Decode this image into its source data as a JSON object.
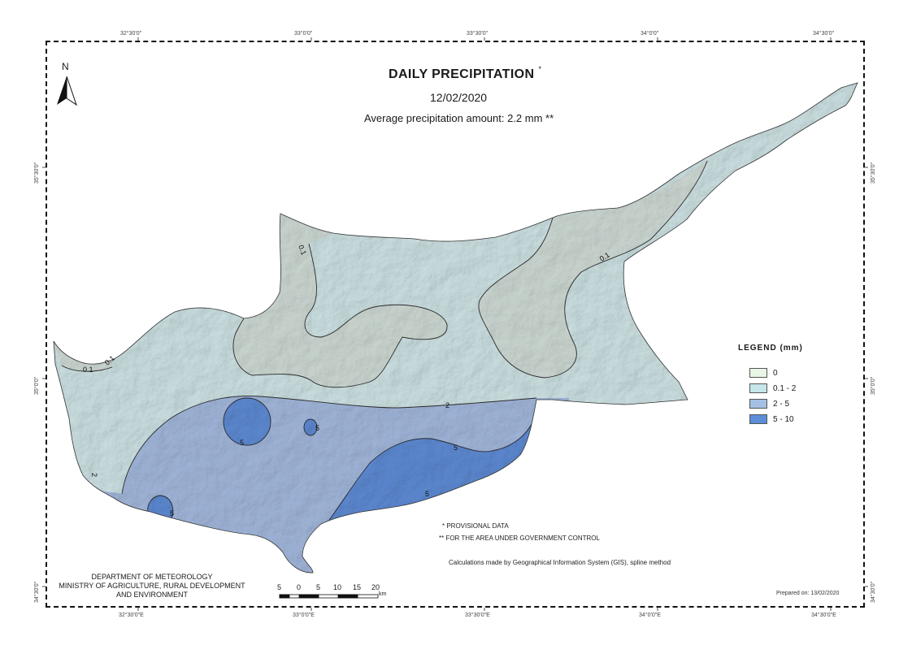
{
  "map": {
    "title": "DAILY PRECIPITATION",
    "title_mark": "*",
    "date": "12/02/2020",
    "average": "Average precipitation amount: 2.2 mm **",
    "north_label": "N"
  },
  "graticule": {
    "top": [
      "32°30'0\"",
      "33°0'0\"",
      "33°30'0\"",
      "34°0'0\"",
      "34°30'0\""
    ],
    "bottom": [
      "32°30'0\"E",
      "33°0'0\"E",
      "33°30'0\"E",
      "34°0'0\"E",
      "34°30'0\"E"
    ],
    "left": [
      "35°30'0\"",
      "35°0'0\"",
      "34°30'0\""
    ],
    "right": [
      "35°30'0\"",
      "35°0'0\"",
      "34°30'0\""
    ]
  },
  "legend": {
    "title": "LEGEND (mm)",
    "items": [
      {
        "label": "0",
        "color": "#eaf6e6"
      },
      {
        "label": "0.1 - 2",
        "color": "#c5e6ea"
      },
      {
        "label": "2 - 5",
        "color": "#a4bfe3"
      },
      {
        "label": "5 - 10",
        "color": "#5b8ed6"
      }
    ]
  },
  "contour_labels": [
    {
      "text": "0.1"
    },
    {
      "text": "0.1"
    },
    {
      "text": "0.1"
    },
    {
      "text": "0.1"
    },
    {
      "text": "2"
    },
    {
      "text": "2"
    },
    {
      "text": "5"
    },
    {
      "text": "5"
    },
    {
      "text": "5"
    },
    {
      "text": "5"
    },
    {
      "text": "5"
    }
  ],
  "notes": {
    "provisional": "* PROVISIONAL DATA",
    "government": "** FOR THE AREA UNDER GOVERNMENT CONTROL",
    "calculations": "Calculations made by Geographical Information System (GIS), spline method",
    "prepared": "Prepared on: 13/02/2020"
  },
  "department": {
    "line1": "DEPARTMENT OF METEOROLOGY",
    "line2": "MINISTRY OF AGRICULTURE, RURAL DEVELOPMENT",
    "line3": "AND ENVIRONMENT"
  },
  "scale_bar": {
    "numbers": [
      "5",
      "0",
      "5",
      "10",
      "15",
      "20"
    ],
    "unit": "km"
  }
}
